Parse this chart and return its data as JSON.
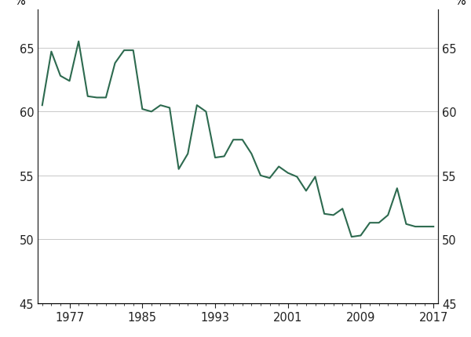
{
  "years": [
    1974,
    1975,
    1976,
    1977,
    1978,
    1979,
    1980,
    1981,
    1982,
    1983,
    1984,
    1985,
    1986,
    1987,
    1988,
    1989,
    1990,
    1991,
    1992,
    1993,
    1994,
    1995,
    1996,
    1997,
    1998,
    1999,
    2000,
    2001,
    2002,
    2003,
    2004,
    2005,
    2006,
    2007,
    2008,
    2009,
    2010,
    2011,
    2012,
    2013,
    2014,
    2015,
    2016,
    2017
  ],
  "values": [
    60.5,
    64.7,
    62.8,
    62.4,
    65.5,
    61.2,
    61.1,
    61.1,
    63.8,
    64.8,
    64.8,
    60.2,
    60.0,
    60.5,
    60.3,
    55.5,
    56.7,
    60.5,
    60.0,
    56.4,
    56.5,
    57.8,
    57.8,
    56.7,
    55.0,
    54.8,
    55.7,
    55.2,
    54.9,
    53.8,
    54.9,
    52.0,
    51.9,
    52.4,
    50.2,
    50.3,
    51.3,
    51.3,
    51.9,
    54.0,
    51.2,
    51.0,
    51.0,
    51.0
  ],
  "line_color": "#2d6a4f",
  "line_width": 1.5,
  "ylim": [
    45,
    68
  ],
  "yticks": [
    45,
    50,
    55,
    60,
    65
  ],
  "xlim_start": 1973.5,
  "xlim_end": 2017.5,
  "xticks": [
    1977,
    1985,
    1993,
    2001,
    2009,
    2017
  ],
  "grid_color": "#c8c8c8",
  "background_color": "#ffffff",
  "ylabel_left": "%",
  "ylabel_right": "%",
  "tick_color": "#222222",
  "font_size": 10.5
}
